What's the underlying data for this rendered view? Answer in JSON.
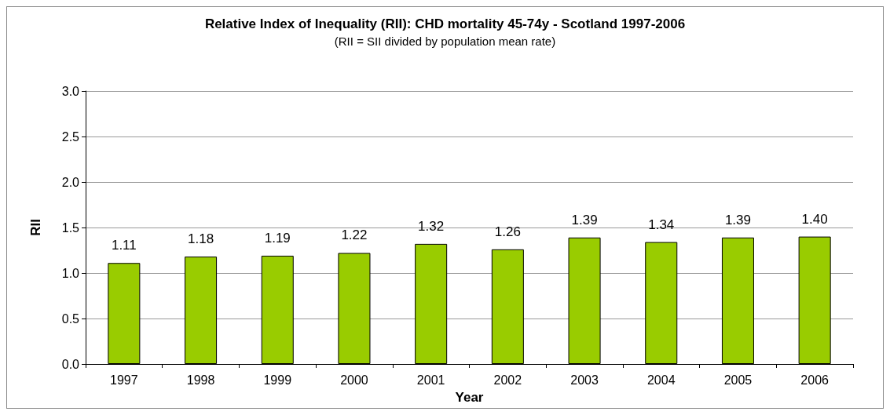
{
  "chart_data": {
    "type": "bar",
    "title": "Relative Index of Inequality (RII): CHD mortality 45-74y - Scotland 1997-2006",
    "subtitle": "(RII = SII divided by population mean rate)",
    "xlabel": "Year",
    "ylabel": "RII",
    "categories": [
      "1997",
      "1998",
      "1999",
      "2000",
      "2001",
      "2002",
      "2003",
      "2004",
      "2005",
      "2006"
    ],
    "values": [
      1.11,
      1.18,
      1.19,
      1.22,
      1.32,
      1.26,
      1.39,
      1.34,
      1.39,
      1.4
    ],
    "value_labels": [
      "1.11",
      "1.18",
      "1.19",
      "1.22",
      "1.32",
      "1.26",
      "1.39",
      "1.34",
      "1.39",
      "1.40"
    ],
    "color": "#99cc00",
    "ylim": [
      0,
      3
    ],
    "yticks": [
      "0.0",
      "0.5",
      "1.0",
      "1.5",
      "2.0",
      "2.5",
      "3.0"
    ],
    "grid": "y"
  }
}
